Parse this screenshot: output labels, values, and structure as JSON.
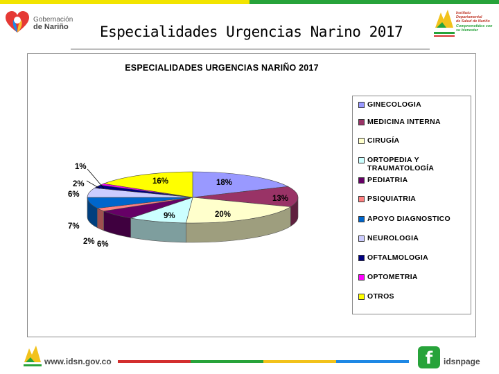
{
  "header": {
    "org_line1": "Gobernación",
    "org_line2": "de Nariño",
    "slide_title": "Especialidades Urgencias Narino 2017",
    "right_logo_lines": [
      "Instituto",
      "Departamental",
      "de Salud de Nariño"
    ],
    "right_logo_slogan": "Comprometidos con su bienestar"
  },
  "footer": {
    "website": "www.idsn.gov.co",
    "social_handle": "idsnpage",
    "social_icon": "facebook-icon",
    "bar_colors": [
      "#d32f2f",
      "#27a33a",
      "#f2c21b",
      "#1e88e5"
    ]
  },
  "colors": {
    "top_bar_left": "#f2e400",
    "top_bar_right": "#27a33a"
  },
  "chart_data": {
    "type": "pie",
    "title": "ESPECIALIDADES URGENCIAS NARIÑO 2017",
    "legend_position": "right",
    "series": [
      {
        "categories": [
          "GINECOLOGIA",
          "MEDICINA INTERNA",
          "CIRUGÍA",
          "ORTOPEDIA Y TRAUMATOLOGÍA",
          "PEDIATRIA",
          "PSIQUIATRIA",
          "APOYO DIAGNOSTICO",
          "NEUROLOGIA",
          "OFTALMOLOGIA",
          "OPTOMETRIA",
          "OTROS"
        ],
        "values": [
          18,
          13,
          20,
          9,
          6,
          2,
          7,
          6,
          2,
          1,
          16
        ],
        "data_labels": [
          "18%",
          "13%",
          "20%",
          "9%",
          "6%",
          "2%",
          "7%",
          "6%",
          "2%",
          "1%",
          "16%"
        ],
        "colors": [
          "#9999ff",
          "#993366",
          "#ffffcc",
          "#ccffff",
          "#660066",
          "#ff8080",
          "#0066cc",
          "#ccccff",
          "#000080",
          "#ff00ff",
          "#ffff00"
        ]
      }
    ]
  }
}
